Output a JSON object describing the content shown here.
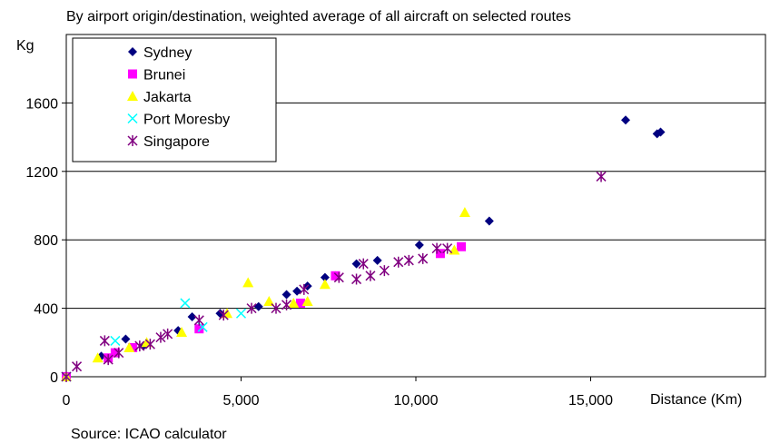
{
  "chart_data": {
    "type": "scatter",
    "subtitle": "By airport origin/destination, weighted average of all aircraft on selected routes",
    "ylabel": "Kg",
    "xlabel": "Distance (Km)",
    "source": "Source: ICAO calculator",
    "xlim": [
      0,
      20000
    ],
    "ylim": [
      0,
      2000
    ],
    "xticks": [
      0,
      5000,
      10000,
      15000
    ],
    "xtick_labels": [
      "0",
      "5,000",
      "10,000",
      "15,000"
    ],
    "yticks": [
      0,
      400,
      800,
      1200,
      1600
    ],
    "ytick_labels": [
      "0",
      "400",
      "800",
      "1200",
      "1600"
    ],
    "grid": "horizontal",
    "legend_position": "top-left",
    "series": [
      {
        "name": "Sydney",
        "marker": "diamond",
        "color": "#000080",
        "points": [
          [
            0,
            0
          ],
          [
            1000,
            120
          ],
          [
            1700,
            220
          ],
          [
            2200,
            180
          ],
          [
            3200,
            270
          ],
          [
            3600,
            350
          ],
          [
            4400,
            370
          ],
          [
            5500,
            410
          ],
          [
            6300,
            480
          ],
          [
            6600,
            500
          ],
          [
            6900,
            530
          ],
          [
            7400,
            580
          ],
          [
            7700,
            590
          ],
          [
            8300,
            660
          ],
          [
            8900,
            680
          ],
          [
            10100,
            770
          ],
          [
            12100,
            910
          ],
          [
            16000,
            1500
          ],
          [
            16900,
            1420
          ],
          [
            17000,
            1430
          ]
        ]
      },
      {
        "name": "Brunei",
        "marker": "square",
        "color": "#FF00FF",
        "points": [
          [
            0,
            0
          ],
          [
            1200,
            110
          ],
          [
            1400,
            140
          ],
          [
            1900,
            170
          ],
          [
            3800,
            280
          ],
          [
            6700,
            430
          ],
          [
            7700,
            590
          ],
          [
            10700,
            720
          ],
          [
            11300,
            760
          ]
        ]
      },
      {
        "name": "Jakarta",
        "marker": "triangle",
        "color": "#FFFF00",
        "points": [
          [
            0,
            0
          ],
          [
            900,
            110
          ],
          [
            1800,
            170
          ],
          [
            2300,
            200
          ],
          [
            3300,
            260
          ],
          [
            4600,
            370
          ],
          [
            5200,
            550
          ],
          [
            5800,
            440
          ],
          [
            6500,
            430
          ],
          [
            6900,
            440
          ],
          [
            7400,
            540
          ],
          [
            11100,
            740
          ],
          [
            11400,
            960
          ]
        ]
      },
      {
        "name": "Port Moresby",
        "marker": "x",
        "color": "#00FFFF",
        "points": [
          [
            0,
            0
          ],
          [
            1400,
            210
          ],
          [
            3400,
            430
          ],
          [
            3900,
            290
          ],
          [
            5000,
            370
          ]
        ]
      },
      {
        "name": "Singapore",
        "marker": "star",
        "color": "#800080",
        "points": [
          [
            0,
            0
          ],
          [
            300,
            60
          ],
          [
            1100,
            210
          ],
          [
            1200,
            100
          ],
          [
            1500,
            140
          ],
          [
            2100,
            180
          ],
          [
            2400,
            190
          ],
          [
            2700,
            230
          ],
          [
            2900,
            250
          ],
          [
            3800,
            330
          ],
          [
            4500,
            360
          ],
          [
            5300,
            400
          ],
          [
            6000,
            400
          ],
          [
            6300,
            420
          ],
          [
            6800,
            510
          ],
          [
            7800,
            580
          ],
          [
            8300,
            570
          ],
          [
            8500,
            660
          ],
          [
            8700,
            590
          ],
          [
            9100,
            620
          ],
          [
            9500,
            670
          ],
          [
            9800,
            680
          ],
          [
            10200,
            690
          ],
          [
            10600,
            750
          ],
          [
            10900,
            750
          ],
          [
            15300,
            1170
          ]
        ]
      }
    ]
  }
}
